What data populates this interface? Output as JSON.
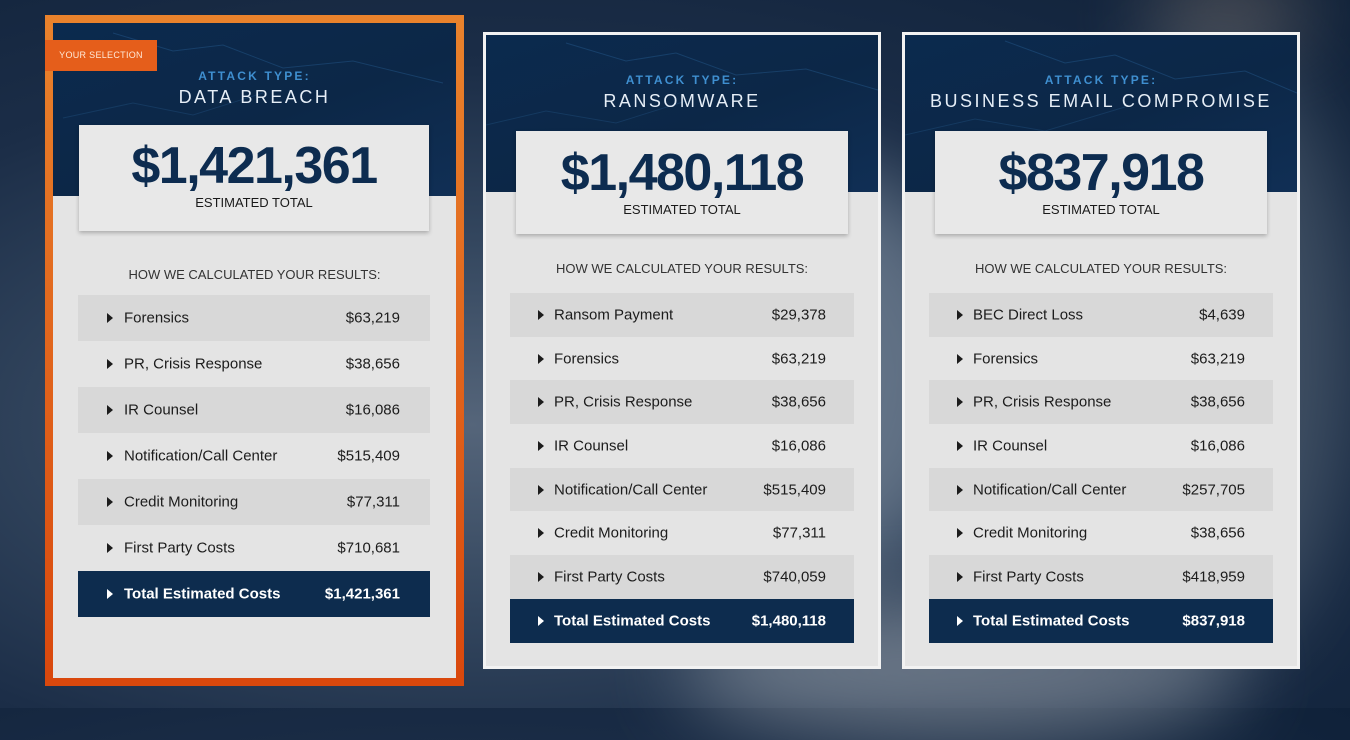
{
  "cards": [
    {
      "badge": "YOUR SELECTION",
      "attack_label": "ATTACK TYPE:",
      "attack_name": "DATA BREACH",
      "total": "$1,421,361",
      "total_label": "ESTIMATED TOTAL",
      "calc_title": "HOW WE CALCULATED YOUR RESULTS:",
      "rows": [
        {
          "label": "Forensics",
          "amount": "$63,219"
        },
        {
          "label": "PR, Crisis Response",
          "amount": "$38,656"
        },
        {
          "label": "IR Counsel",
          "amount": "$16,086"
        },
        {
          "label": "Notification/Call Center",
          "amount": "$515,409"
        },
        {
          "label": "Credit Monitoring",
          "amount": "$77,311"
        },
        {
          "label": "First Party Costs",
          "amount": "$710,681"
        },
        {
          "label": "Total Estimated Costs",
          "amount": "$1,421,361"
        }
      ]
    },
    {
      "attack_label": "ATTACK TYPE:",
      "attack_name": "RANSOMWARE",
      "total": "$1,480,118",
      "total_label": "ESTIMATED TOTAL",
      "calc_title": "HOW WE CALCULATED YOUR RESULTS:",
      "rows": [
        {
          "label": "Ransom Payment",
          "amount": "$29,378"
        },
        {
          "label": "Forensics",
          "amount": "$63,219"
        },
        {
          "label": "PR, Crisis Response",
          "amount": "$38,656"
        },
        {
          "label": "IR Counsel",
          "amount": "$16,086"
        },
        {
          "label": "Notification/Call Center",
          "amount": "$515,409"
        },
        {
          "label": "Credit Monitoring",
          "amount": "$77,311"
        },
        {
          "label": "First Party Costs",
          "amount": "$740,059"
        },
        {
          "label": "Total Estimated Costs",
          "amount": "$1,480,118"
        }
      ]
    },
    {
      "attack_label": "ATTACK TYPE:",
      "attack_name": "BUSINESS EMAIL COMPROMISE",
      "total": "$837,918",
      "total_label": "ESTIMATED TOTAL",
      "calc_title": "HOW WE CALCULATED YOUR RESULTS:",
      "rows": [
        {
          "label": "BEC Direct Loss",
          "amount": "$4,639"
        },
        {
          "label": "Forensics",
          "amount": "$63,219"
        },
        {
          "label": "PR, Crisis Response",
          "amount": "$38,656"
        },
        {
          "label": "IR Counsel",
          "amount": "$16,086"
        },
        {
          "label": "Notification/Call Center",
          "amount": "$257,705"
        },
        {
          "label": "Credit Monitoring",
          "amount": "$38,656"
        },
        {
          "label": "First Party Costs",
          "amount": "$418,959"
        },
        {
          "label": "Total Estimated Costs",
          "amount": "$837,918"
        }
      ]
    }
  ],
  "colors": {
    "header_navy": "#0c2747",
    "selection_orange": "#e55e1b",
    "attack_label_blue": "#3f8fd0",
    "total_row_navy": "#0d2c4e"
  }
}
